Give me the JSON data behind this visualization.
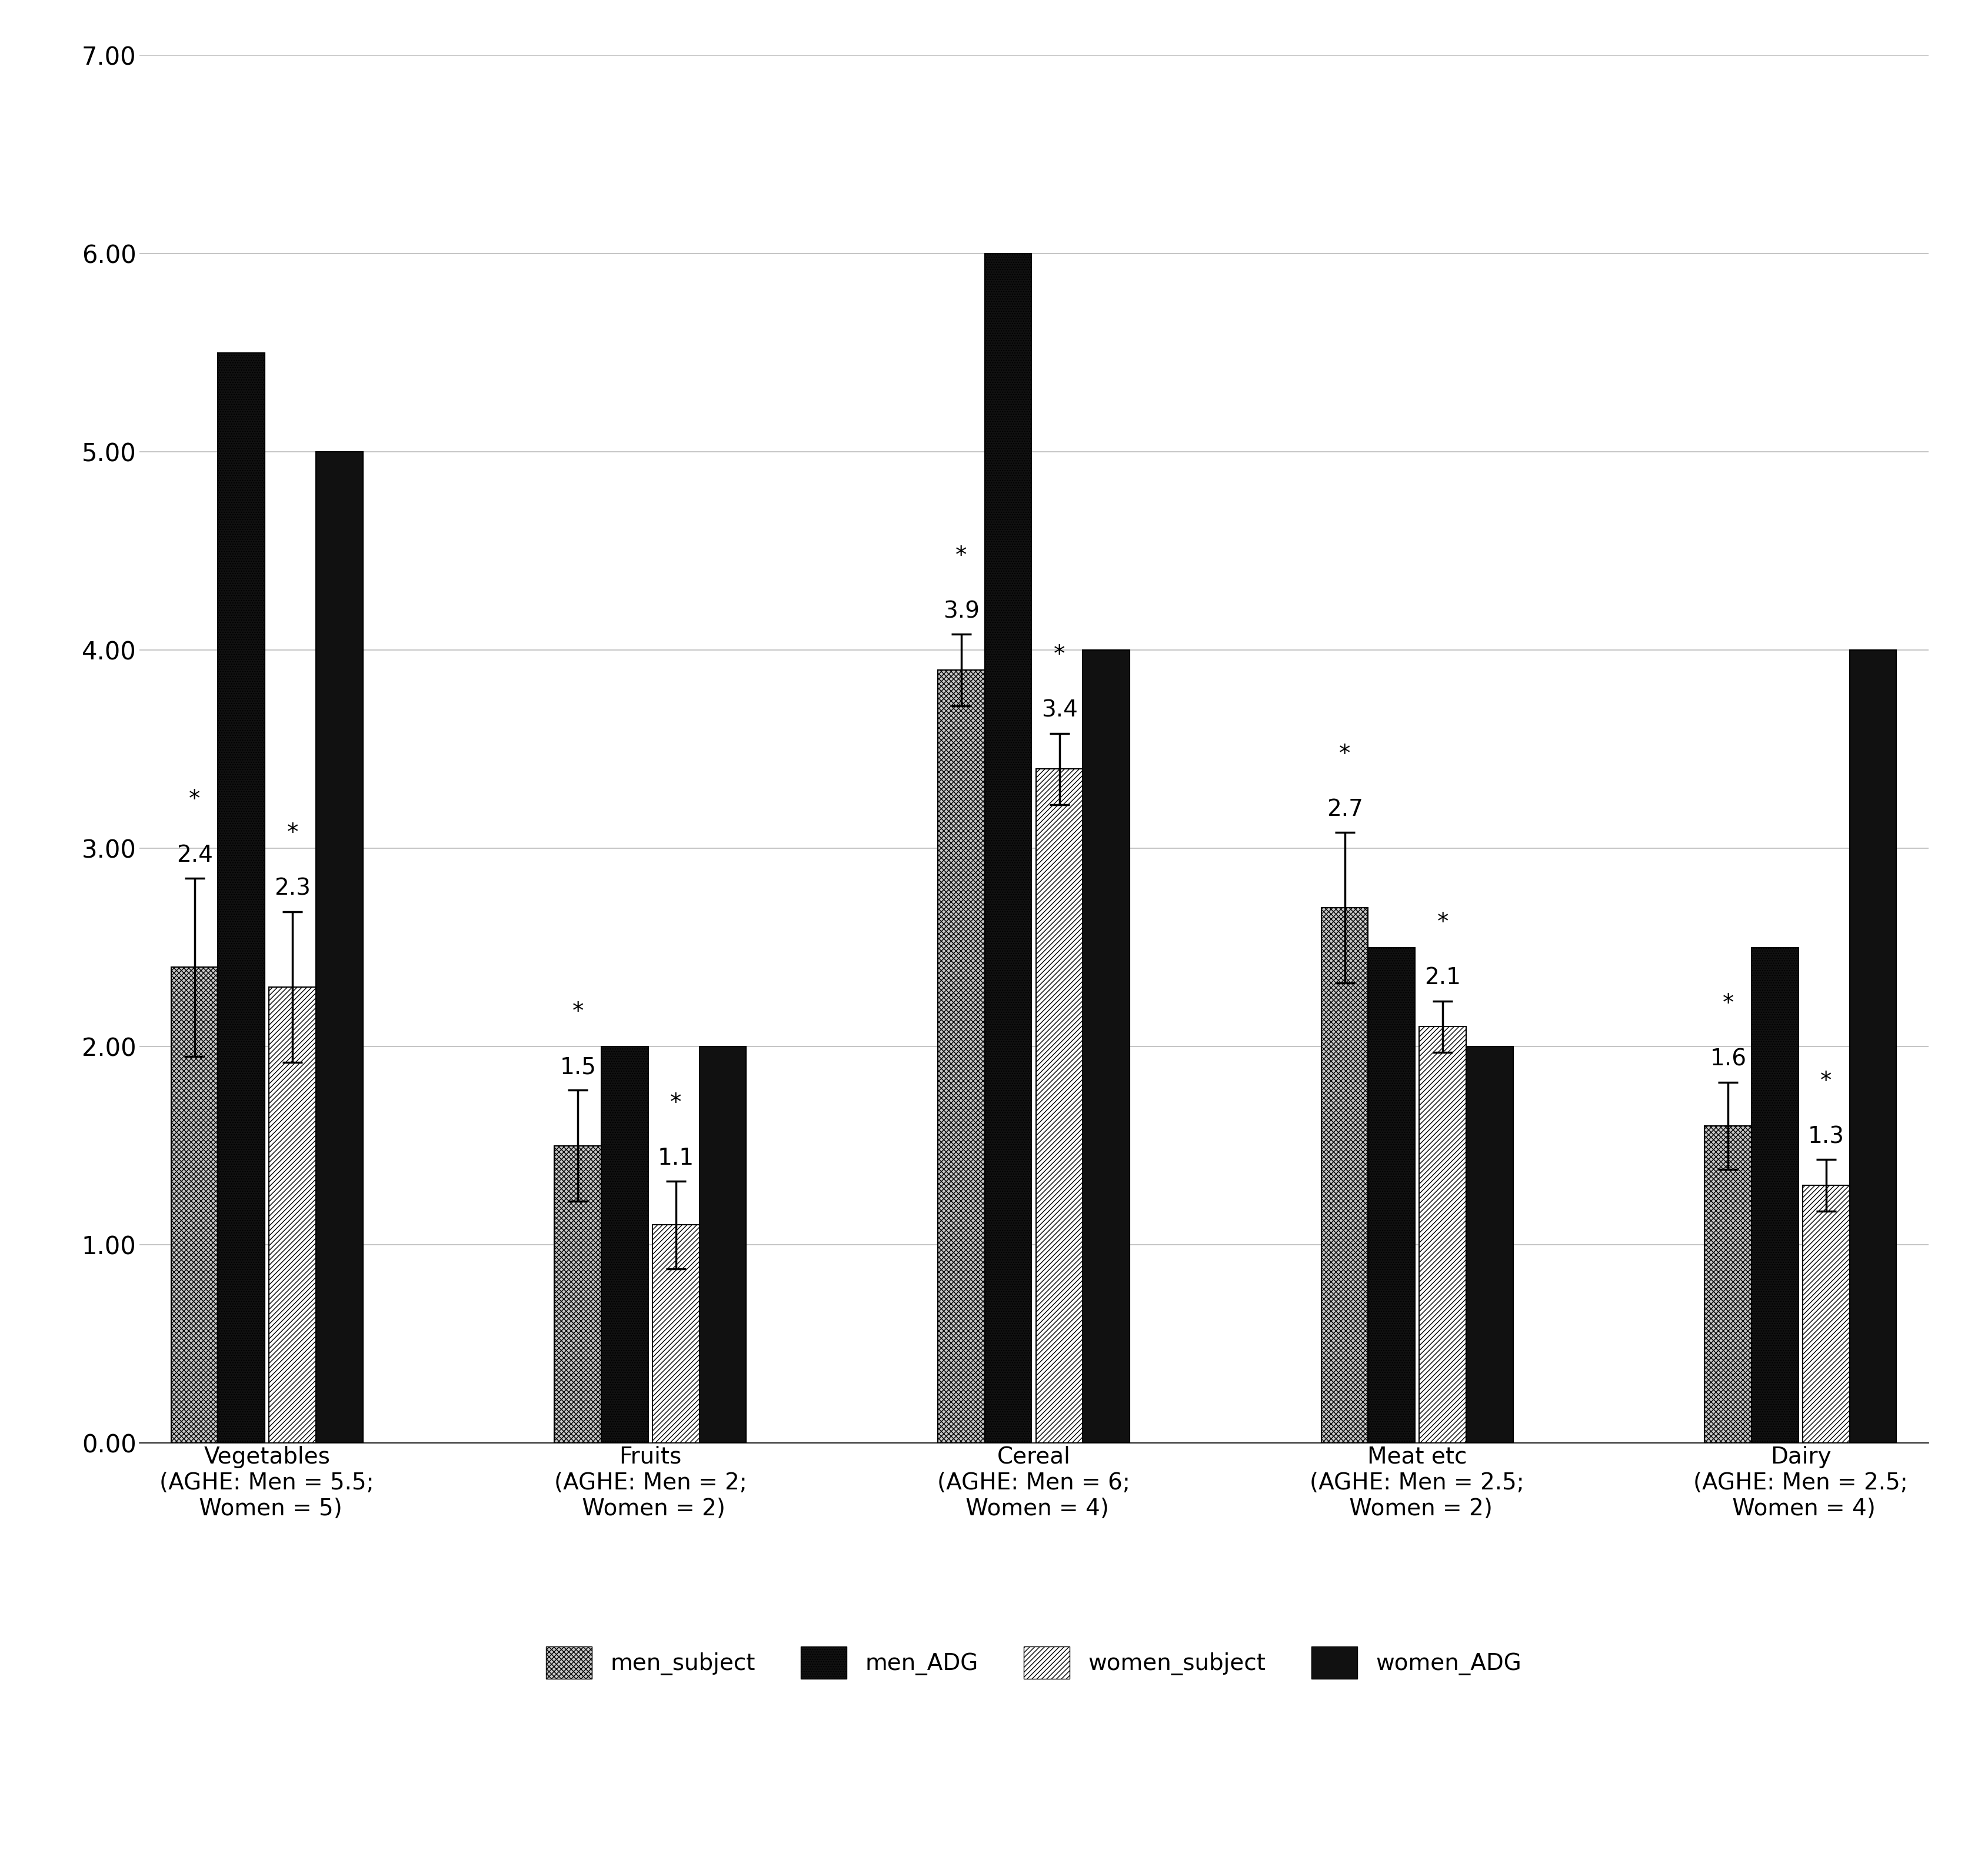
{
  "categories": [
    "Vegetables\n(AGHE: Men = 5.5;\n Women = 5)",
    "Fruits\n(AGHE: Men = 2;\n Women = 2)",
    "Cereal\n(AGHE: Men = 6;\n Women = 4)",
    "Meat etc\n(AGHE: Men = 2.5;\n Women = 2)",
    "Dairy\n(AGHE: Men = 2.5;\n Women = 4)"
  ],
  "men_subject": [
    2.4,
    1.5,
    3.9,
    2.7,
    1.6
  ],
  "men_ADG": [
    5.5,
    2.0,
    6.0,
    2.5,
    2.5
  ],
  "women_subject": [
    2.3,
    1.1,
    3.4,
    2.1,
    1.3
  ],
  "women_ADG": [
    5.0,
    2.0,
    4.0,
    2.0,
    4.0
  ],
  "men_subject_err": [
    0.45,
    0.28,
    0.18,
    0.38,
    0.22
  ],
  "women_subject_err": [
    0.38,
    0.22,
    0.18,
    0.13,
    0.13
  ],
  "ylim": [
    0.0,
    7.0
  ],
  "yticks": [
    0.0,
    1.0,
    2.0,
    3.0,
    4.0,
    5.0,
    6.0,
    7.0
  ],
  "background_color": "#ffffff",
  "bar_width": 0.55,
  "fontsize_labels": 28,
  "fontsize_ticks": 30,
  "fontsize_annotations": 28,
  "fontsize_legend": 28
}
